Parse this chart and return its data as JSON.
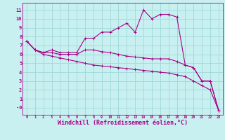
{
  "background_color": "#c8f0f0",
  "grid_color": "#a0d8d8",
  "line_color": "#aa0088",
  "xlabel": "Windchill (Refroidissement éolien,°C)",
  "xlabel_fontsize": 6.0,
  "ylabel_ticks": [
    0,
    1,
    2,
    3,
    4,
    5,
    6,
    7,
    8,
    9,
    10,
    11
  ],
  "xlabel_ticks": [
    0,
    1,
    2,
    3,
    4,
    5,
    6,
    7,
    8,
    9,
    10,
    11,
    12,
    13,
    14,
    15,
    16,
    17,
    18,
    19,
    20,
    21,
    22,
    23
  ],
  "ylim": [
    -0.8,
    11.8
  ],
  "xlim": [
    -0.5,
    23.5
  ],
  "line1_x": [
    0,
    1,
    2,
    3,
    4,
    5,
    6,
    7,
    8,
    9,
    10,
    11,
    12,
    13,
    14,
    15,
    16,
    17,
    18,
    19,
    20,
    21,
    22,
    23
  ],
  "line1_y": [
    7.5,
    6.5,
    6.2,
    6.5,
    6.2,
    6.2,
    6.2,
    7.8,
    7.8,
    8.5,
    8.5,
    9.0,
    9.5,
    8.5,
    11.0,
    10.0,
    10.5,
    10.5,
    10.2,
    4.8,
    4.5,
    3.0,
    3.0,
    -0.3
  ],
  "line2_x": [
    0,
    1,
    2,
    3,
    4,
    5,
    6,
    7,
    8,
    9,
    10,
    11,
    12,
    13,
    14,
    15,
    16,
    17,
    18,
    19,
    20,
    21,
    22,
    23
  ],
  "line2_y": [
    7.5,
    6.5,
    6.2,
    6.2,
    6.0,
    6.0,
    6.0,
    6.5,
    6.5,
    6.3,
    6.2,
    6.0,
    5.8,
    5.7,
    5.6,
    5.5,
    5.5,
    5.5,
    5.2,
    4.8,
    4.5,
    3.0,
    3.0,
    -0.3
  ],
  "line3_x": [
    0,
    1,
    2,
    3,
    4,
    5,
    6,
    7,
    8,
    9,
    10,
    11,
    12,
    13,
    14,
    15,
    16,
    17,
    18,
    19,
    20,
    21,
    22,
    23
  ],
  "line3_y": [
    7.5,
    6.5,
    6.0,
    5.8,
    5.6,
    5.4,
    5.2,
    5.0,
    4.8,
    4.7,
    4.6,
    4.5,
    4.4,
    4.3,
    4.2,
    4.1,
    4.0,
    3.9,
    3.7,
    3.5,
    3.0,
    2.5,
    2.0,
    -0.3
  ]
}
